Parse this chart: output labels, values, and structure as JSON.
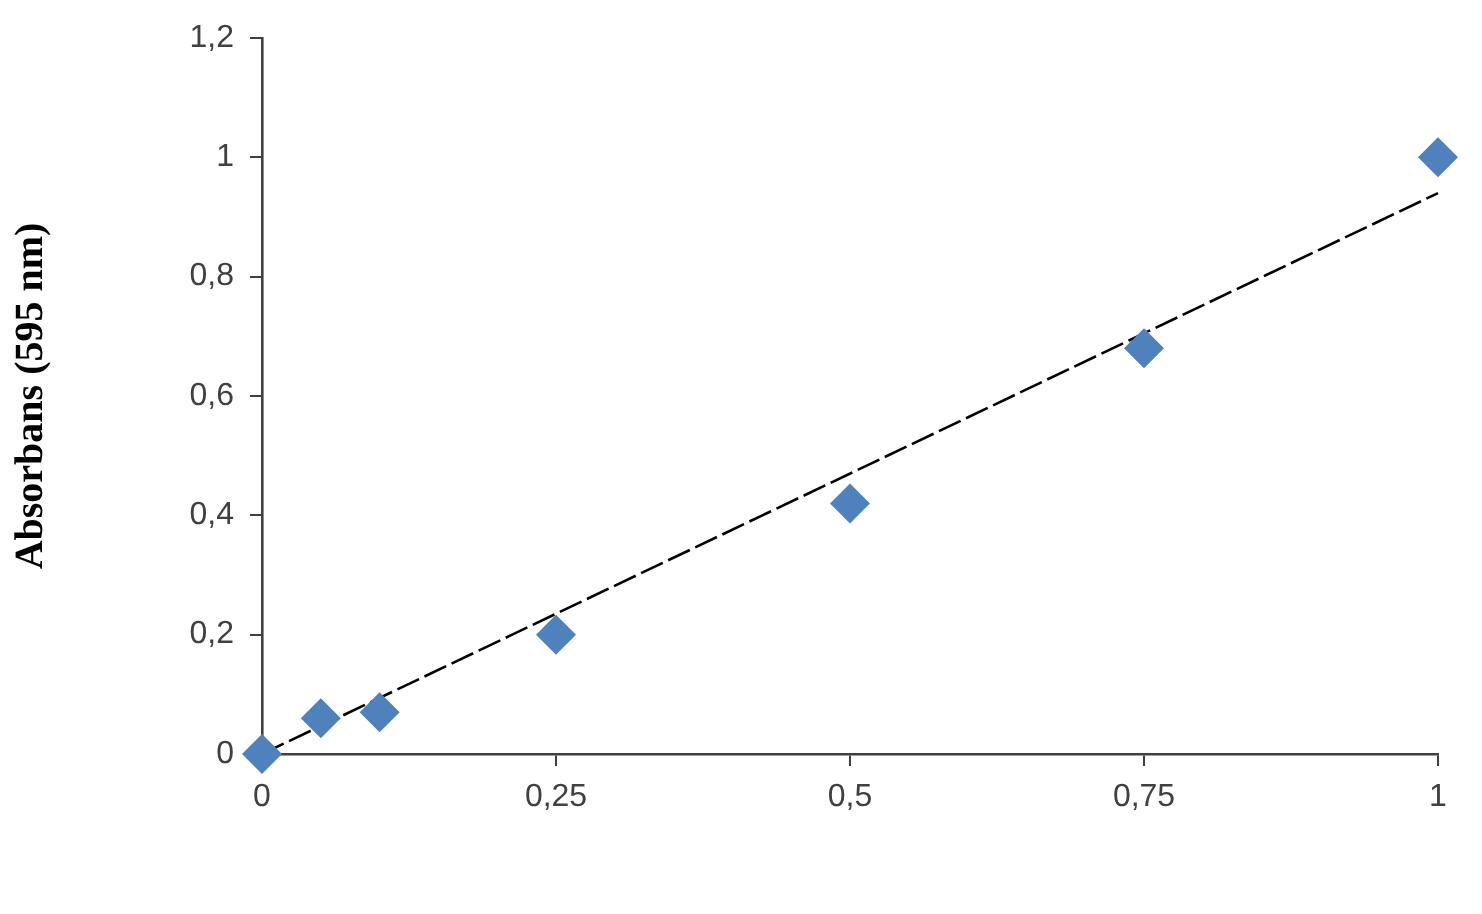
{
  "chart_data": {
    "type": "scatter",
    "ylabel": "Absorbans (595 nm)",
    "x": [
      0,
      0.05,
      0.1,
      0.25,
      0.5,
      0.75,
      1
    ],
    "series": [
      {
        "color": "#4f81bd",
        "values": [
          0,
          0.06,
          0.07,
          0.2,
          0.42,
          0.68,
          1.0
        ]
      },
      {
        "type": "line",
        "x": [
          0,
          1
        ],
        "values": [
          0,
          0.94
        ],
        "color": "#000000",
        "marker": "none",
        "line_style": "dashed"
      }
    ],
    "xlim": [
      0,
      1
    ],
    "ylim": [
      0,
      1.2
    ],
    "xticks": [
      0,
      {
        "value": 0.25,
        "label": "0,25"
      },
      {
        "value": 0.5,
        "label": "0,5"
      },
      {
        "value": 0.75,
        "label": "0,75"
      },
      1
    ],
    "yticks": [
      0,
      {
        "value": 0.2,
        "label": "0,2"
      },
      {
        "value": 0.4,
        "label": "0,4"
      },
      {
        "value": 0.6,
        "label": "0,6"
      },
      {
        "value": 0.8,
        "label": "0,8"
      },
      1,
      {
        "value": 1.2,
        "label": "1,2"
      }
    ],
    "grid": false,
    "legend": false,
    "marker": "diamond"
  }
}
